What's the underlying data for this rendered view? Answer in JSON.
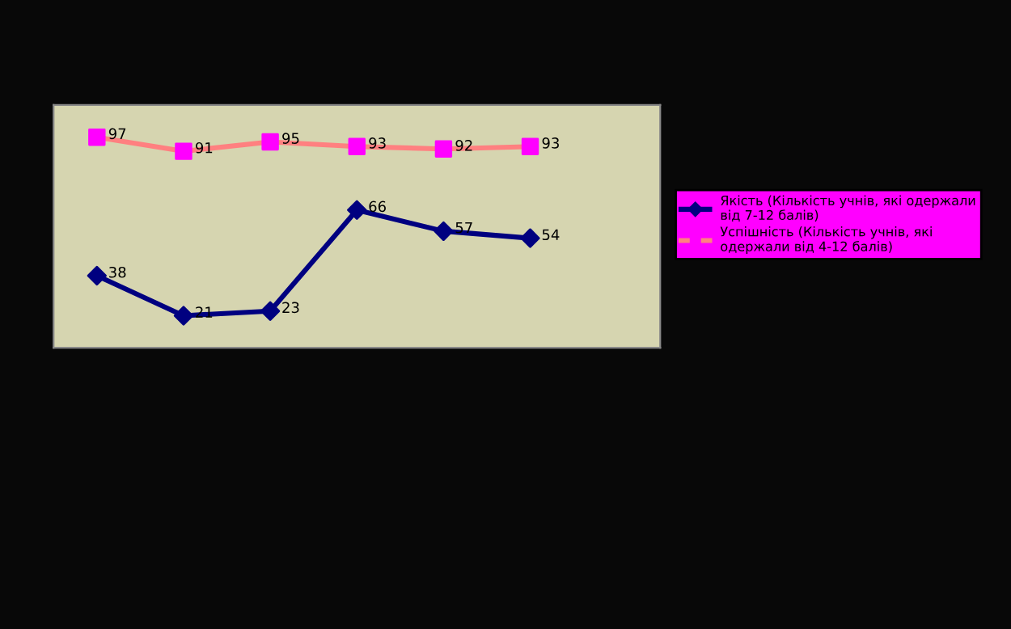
{
  "chart_data": {
    "type": "line",
    "categories": [
      null,
      null,
      null,
      null,
      null,
      null
    ],
    "series": [
      {
        "name": "Якість (Кількість учнів, які одержали від 7-12 балів)",
        "color": "#000080",
        "marker": "diamond",
        "line_style": "solid",
        "values": [
          38,
          21,
          23,
          66,
          57,
          54
        ]
      },
      {
        "name": "Успішність (Кількість учнів, які одержали від 4-12 балів)",
        "color": "#ff8080",
        "colors": [
          "#ff00ff",
          "#ff00ff",
          "#ff00ff",
          "#ff00ff",
          "#ff00ff",
          "#ff00ff"
        ],
        "marker": "square",
        "line_style": "solid",
        "values": [
          97,
          91,
          95,
          93,
          92,
          93
        ]
      }
    ],
    "data_labels": true,
    "legend": "right",
    "grid": false,
    "tick_labels": false
  }
}
